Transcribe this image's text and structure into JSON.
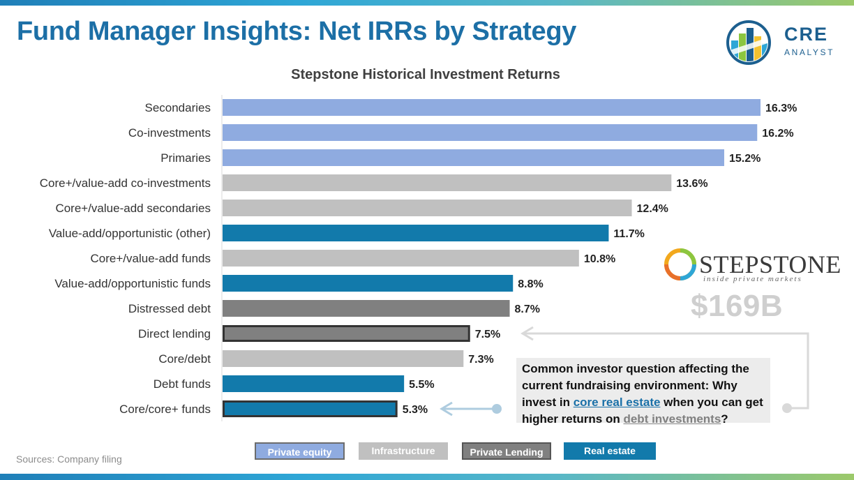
{
  "header": {
    "title": "Fund Manager Insights: Net IRRs by Strategy",
    "logo_text_main": "CRE",
    "logo_text_sub": "ANALYST"
  },
  "chart_data": {
    "type": "bar",
    "orientation": "horizontal",
    "title": "Stepstone Historical Investment Returns",
    "value_format": "percent",
    "categories": [
      "Secondaries",
      "Co-investments",
      "Primaries",
      "Core+/value-add co-investments",
      "Core+/value-add secondaries",
      "Value-add/opportunistic (other)",
      "Core+/value-add funds",
      "Value-add/opportunistic funds",
      "Distressed debt",
      "Direct lending",
      "Core/debt",
      "Debt funds",
      "Core/core+ funds"
    ],
    "values": [
      16.3,
      16.2,
      15.2,
      13.6,
      12.4,
      11.7,
      10.8,
      8.8,
      8.7,
      7.5,
      7.3,
      5.5,
      5.3
    ],
    "labels": [
      "16.3%",
      "16.2%",
      "15.2%",
      "13.6%",
      "12.4%",
      "11.7%",
      "10.8%",
      "8.8%",
      "8.7%",
      "7.5%",
      "7.3%",
      "5.5%",
      "5.3%"
    ],
    "groups": [
      "Private equity",
      "Private equity",
      "Private equity",
      "Infrastructure",
      "Infrastructure",
      "Real estate",
      "Infrastructure",
      "Real estate",
      "Private Lending",
      "Private Lending",
      "Infrastructure",
      "Real estate",
      "Real estate"
    ],
    "highlighted": [
      "Direct lending",
      "Core/core+ funds"
    ],
    "xlim": [
      0,
      16.3
    ],
    "grid": false,
    "legend": {
      "placement": "bottom",
      "entries": [
        {
          "name": "Private equity",
          "color": "#8fabe0"
        },
        {
          "name": "Infrastructure",
          "color": "#c0c0c0"
        },
        {
          "name": "Private Lending",
          "color": "#808080"
        },
        {
          "name": "Real estate",
          "color": "#127aab"
        }
      ]
    }
  },
  "stepstone": {
    "name": "STEPSTONE",
    "tagline": "inside private markets",
    "aum": "$169B"
  },
  "callout": {
    "part1": "Common investor question affecting the current fundraising environment: Why invest in ",
    "link1": "core real estate",
    "part2": " when you can get higher returns on ",
    "link2": "debt investments",
    "part3": "?"
  },
  "footer": {
    "sources": "Sources: Company filing"
  },
  "colors": {
    "title": "#1c6fa6",
    "arrow": "#aeccdf"
  }
}
